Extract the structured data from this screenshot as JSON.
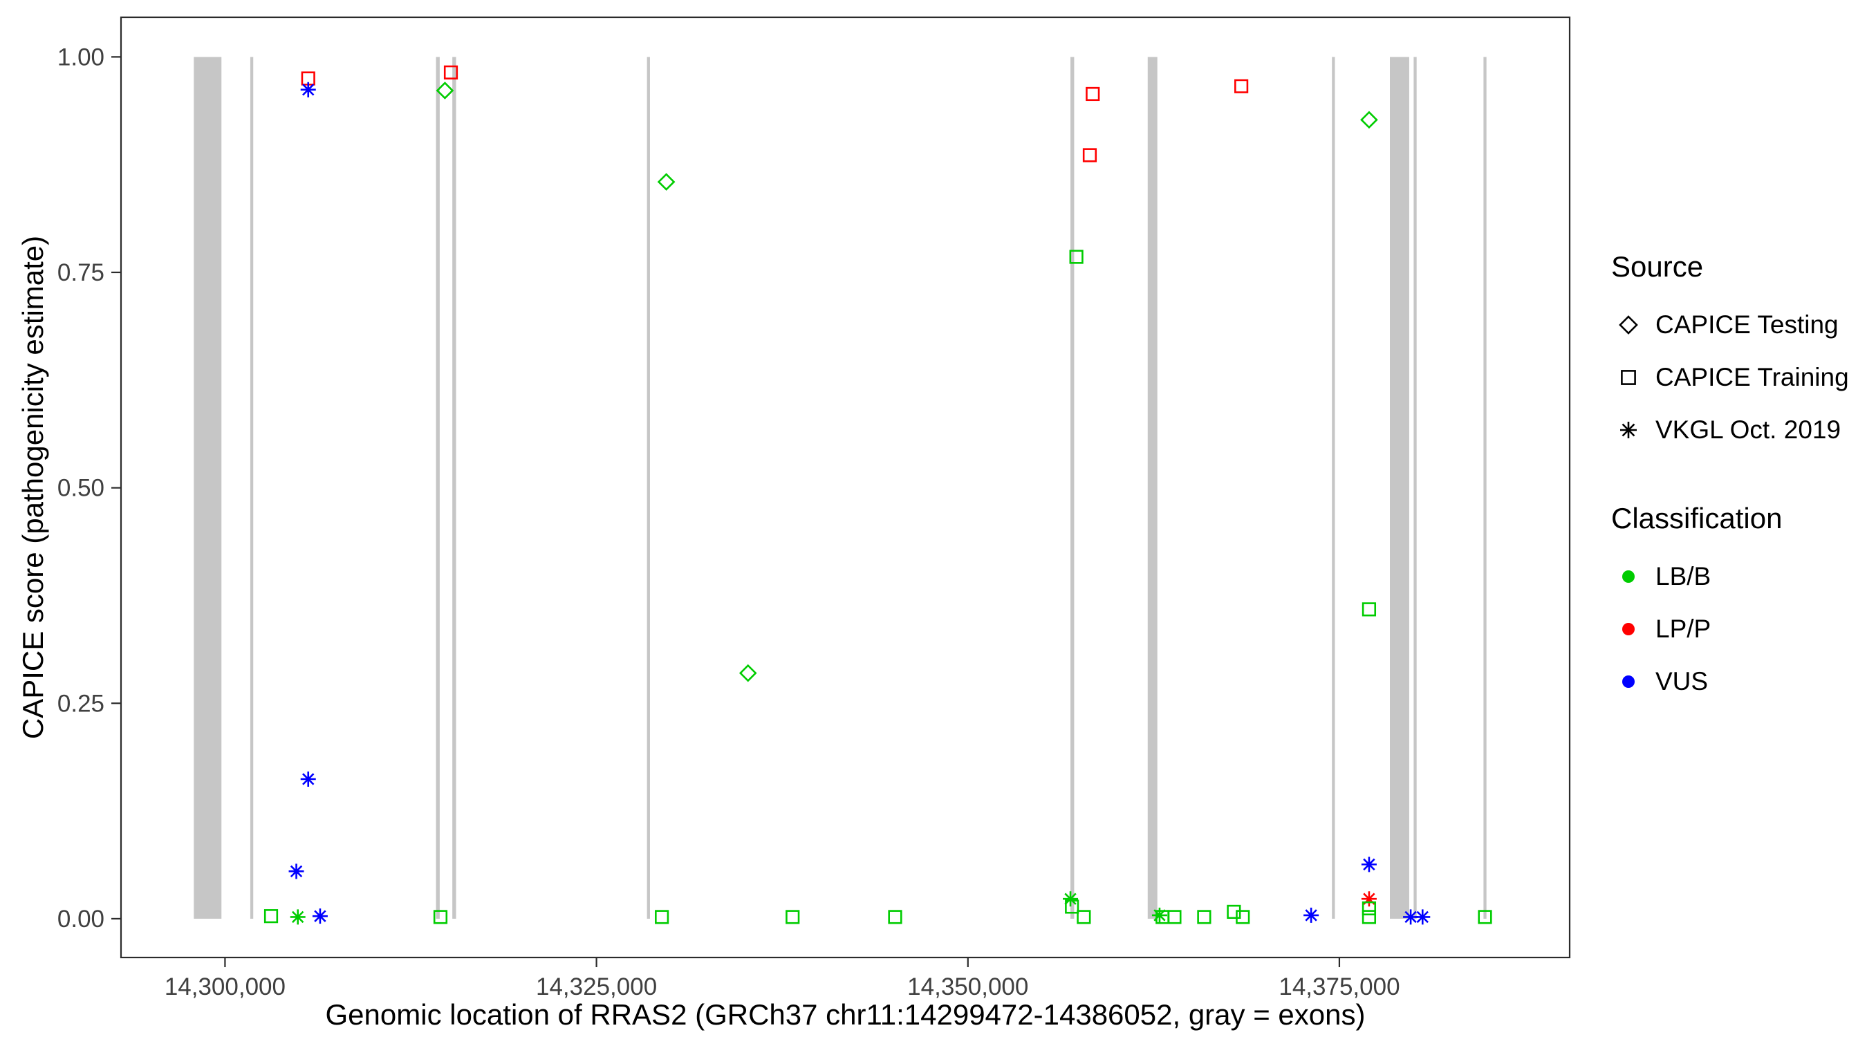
{
  "chart_data": {
    "type": "scatter",
    "xlabel": "Genomic location of RRAS2 (GRCh37 chr11:14299472-14386052, gray = exons)",
    "ylabel": "CAPICE score (pathogenicity estimate)",
    "xlim": [
      14293000,
      14390500
    ],
    "ylim": [
      -0.045,
      1.046
    ],
    "grid": false,
    "legend_position": "right",
    "x_ticks": [
      {
        "value": 14300000,
        "label": "14,300,000"
      },
      {
        "value": 14325000,
        "label": "14,325,000"
      },
      {
        "value": 14350000,
        "label": "14,350,000"
      },
      {
        "value": 14375000,
        "label": "14,375,000"
      }
    ],
    "y_ticks": [
      {
        "value": 0.0,
        "label": "0.00"
      },
      {
        "value": 0.25,
        "label": "0.25"
      },
      {
        "value": 0.5,
        "label": "0.50"
      },
      {
        "value": 0.75,
        "label": "0.75"
      },
      {
        "value": 1.0,
        "label": "1.00"
      }
    ],
    "exon_color": "#c6c6c6",
    "exons": [
      {
        "start": 14297900,
        "end": 14299760
      },
      {
        "start": 14301700,
        "end": 14301900
      },
      {
        "start": 14314200,
        "end": 14314450
      },
      {
        "start": 14315300,
        "end": 14315550
      },
      {
        "start": 14328400,
        "end": 14328600
      },
      {
        "start": 14356900,
        "end": 14357150
      },
      {
        "start": 14362100,
        "end": 14362750
      },
      {
        "start": 14374500,
        "end": 14374700
      },
      {
        "start": 14378400,
        "end": 14379700
      },
      {
        "start": 14380000,
        "end": 14380200
      },
      {
        "start": 14384700,
        "end": 14384900
      }
    ],
    "classification_colors": {
      "LB/B": "#00cc00",
      "LP/P": "#ff0000",
      "VUS": "#0000ff"
    },
    "source_shapes": {
      "CAPICE Testing": "diamond",
      "CAPICE Training": "square",
      "VKGL Oct. 2019": "asterisk"
    },
    "points": [
      {
        "x": 14305600,
        "y": 0.975,
        "source": "CAPICE Training",
        "classification": "LP/P"
      },
      {
        "x": 14305600,
        "y": 0.962,
        "source": "VKGL Oct. 2019",
        "classification": "VUS"
      },
      {
        "x": 14315200,
        "y": 0.982,
        "source": "CAPICE Training",
        "classification": "LP/P"
      },
      {
        "x": 14314800,
        "y": 0.961,
        "source": "CAPICE Testing",
        "classification": "LB/B"
      },
      {
        "x": 14329700,
        "y": 0.855,
        "source": "CAPICE Testing",
        "classification": "LB/B"
      },
      {
        "x": 14358400,
        "y": 0.957,
        "source": "CAPICE Training",
        "classification": "LP/P"
      },
      {
        "x": 14358200,
        "y": 0.886,
        "source": "CAPICE Training",
        "classification": "LP/P"
      },
      {
        "x": 14368400,
        "y": 0.966,
        "source": "CAPICE Training",
        "classification": "LP/P"
      },
      {
        "x": 14357300,
        "y": 0.768,
        "source": "CAPICE Training",
        "classification": "LB/B"
      },
      {
        "x": 14377000,
        "y": 0.927,
        "source": "CAPICE Testing",
        "classification": "LB/B"
      },
      {
        "x": 14335200,
        "y": 0.285,
        "source": "CAPICE Testing",
        "classification": "LB/B"
      },
      {
        "x": 14377000,
        "y": 0.359,
        "source": "CAPICE Training",
        "classification": "LB/B"
      },
      {
        "x": 14305600,
        "y": 0.162,
        "source": "VKGL Oct. 2019",
        "classification": "VUS"
      },
      {
        "x": 14304800,
        "y": 0.055,
        "source": "VKGL Oct. 2019",
        "classification": "VUS"
      },
      {
        "x": 14377000,
        "y": 0.063,
        "source": "VKGL Oct. 2019",
        "classification": "VUS"
      },
      {
        "x": 14377000,
        "y": 0.023,
        "source": "VKGL Oct. 2019",
        "classification": "LP/P"
      },
      {
        "x": 14356900,
        "y": 0.023,
        "source": "VKGL Oct. 2019",
        "classification": "LB/B"
      },
      {
        "x": 14357000,
        "y": 0.014,
        "source": "CAPICE Training",
        "classification": "LB/B"
      },
      {
        "x": 14303100,
        "y": 0.003,
        "source": "CAPICE Training",
        "classification": "LB/B"
      },
      {
        "x": 14304900,
        "y": 0.002,
        "source": "VKGL Oct. 2019",
        "classification": "LB/B"
      },
      {
        "x": 14306400,
        "y": 0.003,
        "source": "VKGL Oct. 2019",
        "classification": "VUS"
      },
      {
        "x": 14314500,
        "y": 0.002,
        "source": "CAPICE Training",
        "classification": "LB/B"
      },
      {
        "x": 14329400,
        "y": 0.002,
        "source": "CAPICE Training",
        "classification": "LB/B"
      },
      {
        "x": 14338200,
        "y": 0.002,
        "source": "CAPICE Training",
        "classification": "LB/B"
      },
      {
        "x": 14345100,
        "y": 0.002,
        "source": "CAPICE Training",
        "classification": "LB/B"
      },
      {
        "x": 14357800,
        "y": 0.002,
        "source": "CAPICE Training",
        "classification": "LB/B"
      },
      {
        "x": 14362900,
        "y": 0.004,
        "source": "VKGL Oct. 2019",
        "classification": "LB/B"
      },
      {
        "x": 14363100,
        "y": 0.002,
        "source": "CAPICE Training",
        "classification": "LB/B"
      },
      {
        "x": 14363900,
        "y": 0.002,
        "source": "CAPICE Training",
        "classification": "LB/B"
      },
      {
        "x": 14365900,
        "y": 0.002,
        "source": "CAPICE Training",
        "classification": "LB/B"
      },
      {
        "x": 14367900,
        "y": 0.008,
        "source": "CAPICE Training",
        "classification": "LB/B"
      },
      {
        "x": 14368500,
        "y": 0.002,
        "source": "CAPICE Training",
        "classification": "LB/B"
      },
      {
        "x": 14373100,
        "y": 0.004,
        "source": "VKGL Oct. 2019",
        "classification": "VUS"
      },
      {
        "x": 14377000,
        "y": 0.012,
        "source": "CAPICE Training",
        "classification": "LB/B"
      },
      {
        "x": 14377000,
        "y": 0.002,
        "source": "CAPICE Training",
        "classification": "LB/B"
      },
      {
        "x": 14379800,
        "y": 0.002,
        "source": "VKGL Oct. 2019",
        "classification": "VUS"
      },
      {
        "x": 14380600,
        "y": 0.002,
        "source": "VKGL Oct. 2019",
        "classification": "VUS"
      },
      {
        "x": 14384800,
        "y": 0.002,
        "source": "CAPICE Training",
        "classification": "LB/B"
      }
    ]
  },
  "legend": {
    "source": {
      "title": "Source",
      "items": [
        {
          "label": "CAPICE Testing",
          "shape": "diamond"
        },
        {
          "label": "CAPICE Training",
          "shape": "square"
        },
        {
          "label": "VKGL Oct. 2019",
          "shape": "asterisk"
        }
      ]
    },
    "classification": {
      "title": "Classification",
      "items": [
        {
          "label": "LB/B",
          "color": "#00cc00"
        },
        {
          "label": "LP/P",
          "color": "#ff0000"
        },
        {
          "label": "VUS",
          "color": "#0000ff"
        }
      ]
    }
  }
}
